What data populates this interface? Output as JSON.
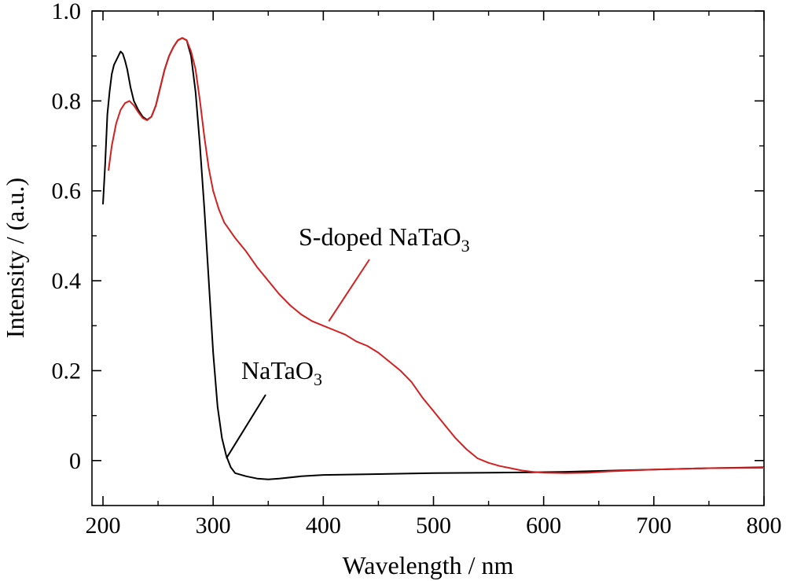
{
  "chart_data": {
    "type": "line",
    "xlabel": "Wavelength / nm",
    "ylabel": "Intensity / (a.u.)",
    "xlim": [
      190,
      800
    ],
    "ylim": [
      -0.1,
      1.0
    ],
    "x_ticks": [
      "200",
      "300",
      "400",
      "500",
      "600",
      "700",
      "800"
    ],
    "y_ticks": [
      "0",
      "0.2",
      "0.4",
      "0.6",
      "0.8",
      "1.0"
    ],
    "grid": false,
    "series": [
      {
        "name": "NaTaO3",
        "color": "#000000",
        "x": [
          200,
          202,
          204,
          206,
          208,
          210,
          212,
          214,
          216,
          218,
          220,
          222,
          225,
          228,
          232,
          236,
          240,
          244,
          248,
          252,
          256,
          260,
          264,
          268,
          272,
          276,
          280,
          284,
          288,
          292,
          296,
          300,
          304,
          308,
          312,
          316,
          320,
          330,
          340,
          350,
          360,
          380,
          400,
          450,
          500,
          550,
          590,
          620,
          650,
          700,
          750,
          800
        ],
        "y": [
          0.57,
          0.66,
          0.77,
          0.82,
          0.86,
          0.88,
          0.89,
          0.9,
          0.91,
          0.905,
          0.89,
          0.87,
          0.83,
          0.8,
          0.78,
          0.765,
          0.758,
          0.765,
          0.79,
          0.83,
          0.87,
          0.9,
          0.92,
          0.935,
          0.94,
          0.935,
          0.9,
          0.82,
          0.7,
          0.56,
          0.4,
          0.24,
          0.12,
          0.05,
          0.01,
          -0.015,
          -0.028,
          -0.035,
          -0.04,
          -0.042,
          -0.04,
          -0.035,
          -0.032,
          -0.03,
          -0.028,
          -0.027,
          -0.026,
          -0.025,
          -0.023,
          -0.02,
          -0.017,
          -0.015
        ]
      },
      {
        "name": "S-doped NaTaO3",
        "color": "#d42020",
        "x": [
          205,
          208,
          212,
          216,
          220,
          224,
          228,
          232,
          236,
          240,
          244,
          248,
          252,
          256,
          260,
          264,
          268,
          272,
          276,
          280,
          284,
          288,
          292,
          296,
          300,
          305,
          310,
          320,
          330,
          340,
          350,
          360,
          370,
          380,
          390,
          400,
          410,
          420,
          430,
          440,
          450,
          460,
          470,
          480,
          490,
          500,
          510,
          520,
          530,
          540,
          550,
          560,
          570,
          580,
          590,
          600,
          620,
          640,
          660,
          700,
          750,
          800
        ],
        "y": [
          0.645,
          0.7,
          0.75,
          0.78,
          0.795,
          0.8,
          0.79,
          0.775,
          0.762,
          0.757,
          0.765,
          0.79,
          0.83,
          0.87,
          0.9,
          0.92,
          0.935,
          0.94,
          0.935,
          0.91,
          0.87,
          0.8,
          0.72,
          0.65,
          0.6,
          0.56,
          0.53,
          0.495,
          0.465,
          0.43,
          0.4,
          0.37,
          0.345,
          0.325,
          0.31,
          0.3,
          0.29,
          0.28,
          0.265,
          0.255,
          0.24,
          0.22,
          0.2,
          0.175,
          0.14,
          0.11,
          0.08,
          0.05,
          0.025,
          0.005,
          -0.005,
          -0.012,
          -0.017,
          -0.022,
          -0.025,
          -0.027,
          -0.028,
          -0.027,
          -0.024,
          -0.02,
          -0.017,
          -0.016
        ]
      }
    ],
    "annotations": [
      {
        "text": "S-doped NaTaO",
        "subscript": "3",
        "series": "S-doped NaTaO3",
        "target_x": 405,
        "target_y": 0.31
      },
      {
        "text": "NaTaO",
        "subscript": "3",
        "series": "NaTaO3",
        "target_x": 312,
        "target_y": 0.005
      }
    ]
  }
}
